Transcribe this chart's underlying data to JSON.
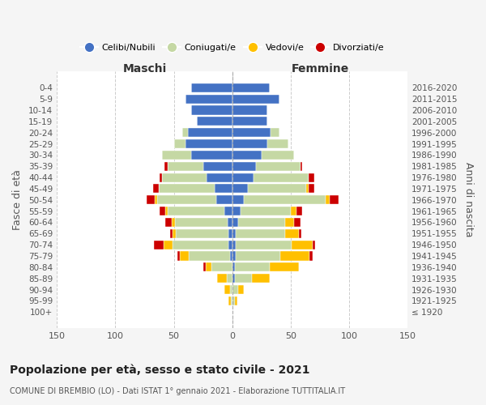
{
  "age_groups": [
    "100+",
    "95-99",
    "90-94",
    "85-89",
    "80-84",
    "75-79",
    "70-74",
    "65-69",
    "60-64",
    "55-59",
    "50-54",
    "45-49",
    "40-44",
    "35-39",
    "30-34",
    "25-29",
    "20-24",
    "15-19",
    "10-14",
    "5-9",
    "0-4"
  ],
  "birth_years": [
    "≤ 1920",
    "1921-1925",
    "1926-1930",
    "1931-1935",
    "1936-1940",
    "1941-1945",
    "1946-1950",
    "1951-1955",
    "1956-1960",
    "1961-1965",
    "1966-1970",
    "1971-1975",
    "1976-1980",
    "1981-1985",
    "1986-1990",
    "1991-1995",
    "1996-2000",
    "2001-2005",
    "2006-2010",
    "2011-2015",
    "2016-2020"
  ],
  "male": {
    "celibi": [
      0,
      0,
      0,
      0,
      0,
      2,
      3,
      3,
      4,
      7,
      14,
      15,
      22,
      25,
      35,
      40,
      38,
      30,
      35,
      40,
      35
    ],
    "coniugati": [
      0,
      1,
      2,
      5,
      18,
      35,
      48,
      45,
      45,
      48,
      50,
      48,
      38,
      30,
      25,
      10,
      5,
      0,
      0,
      0,
      0
    ],
    "vedovi": [
      0,
      2,
      5,
      8,
      5,
      8,
      8,
      3,
      3,
      2,
      2,
      0,
      0,
      0,
      0,
      0,
      0,
      0,
      0,
      0,
      0
    ],
    "divorziati": [
      0,
      0,
      0,
      0,
      2,
      2,
      8,
      2,
      5,
      5,
      7,
      5,
      2,
      3,
      0,
      0,
      0,
      0,
      0,
      0,
      0
    ]
  },
  "female": {
    "nubili": [
      0,
      0,
      0,
      2,
      2,
      3,
      3,
      3,
      5,
      7,
      10,
      13,
      18,
      20,
      25,
      30,
      33,
      30,
      30,
      40,
      32
    ],
    "coniugate": [
      0,
      2,
      5,
      15,
      30,
      38,
      48,
      42,
      40,
      43,
      70,
      50,
      47,
      38,
      28,
      18,
      7,
      0,
      0,
      0,
      0
    ],
    "vedove": [
      0,
      2,
      5,
      15,
      25,
      25,
      18,
      12,
      8,
      5,
      3,
      2,
      0,
      0,
      0,
      0,
      0,
      0,
      0,
      0,
      0
    ],
    "divorziate": [
      0,
      0,
      0,
      0,
      0,
      3,
      2,
      2,
      5,
      5,
      8,
      5,
      5,
      2,
      0,
      0,
      0,
      0,
      0,
      0,
      0
    ]
  },
  "colors": {
    "celibi": "#4472c4",
    "coniugati": "#c5d8a4",
    "vedovi": "#ffc000",
    "divorziati": "#cc0000"
  },
  "xlim": 150,
  "title": "Popolazione per età, sesso e stato civile - 2021",
  "subtitle": "COMUNE DI BREMBIO (LO) - Dati ISTAT 1° gennaio 2021 - Elaborazione TUTTITALIA.IT",
  "ylabel_left": "Fasce di età",
  "ylabel_right": "Anni di nascita",
  "xlabel_male": "Maschi",
  "xlabel_female": "Femmine",
  "bg_color": "#f5f5f5",
  "plot_bg": "#ffffff",
  "legend_labels": [
    "Celibi/Nubili",
    "Coniugati/e",
    "Vedovi/e",
    "Divorziati/e"
  ]
}
